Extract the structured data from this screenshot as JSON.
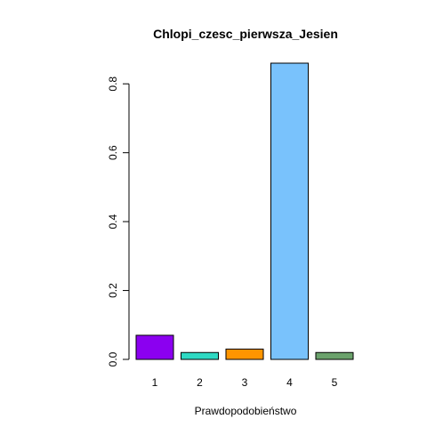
{
  "chart_data": {
    "type": "bar",
    "title": "Chlopi_czesc_pierwsza_Jesien",
    "xlabel": "Prawdopodobieństwo",
    "ylabel": "",
    "categories": [
      "1",
      "2",
      "3",
      "4",
      "5"
    ],
    "values": [
      0.07,
      0.02,
      0.03,
      0.86,
      0.02
    ],
    "colors": [
      "#8B00F0",
      "#2ED9C3",
      "#FF9500",
      "#79C2FC",
      "#6BA26C"
    ],
    "ylim": [
      0,
      0.86
    ],
    "yticks": [
      0.0,
      0.2,
      0.4,
      0.6,
      0.8
    ],
    "ytick_labels": [
      "0.0",
      "0.2",
      "0.4",
      "0.6",
      "0.8"
    ],
    "grid": false,
    "legend": "none"
  }
}
